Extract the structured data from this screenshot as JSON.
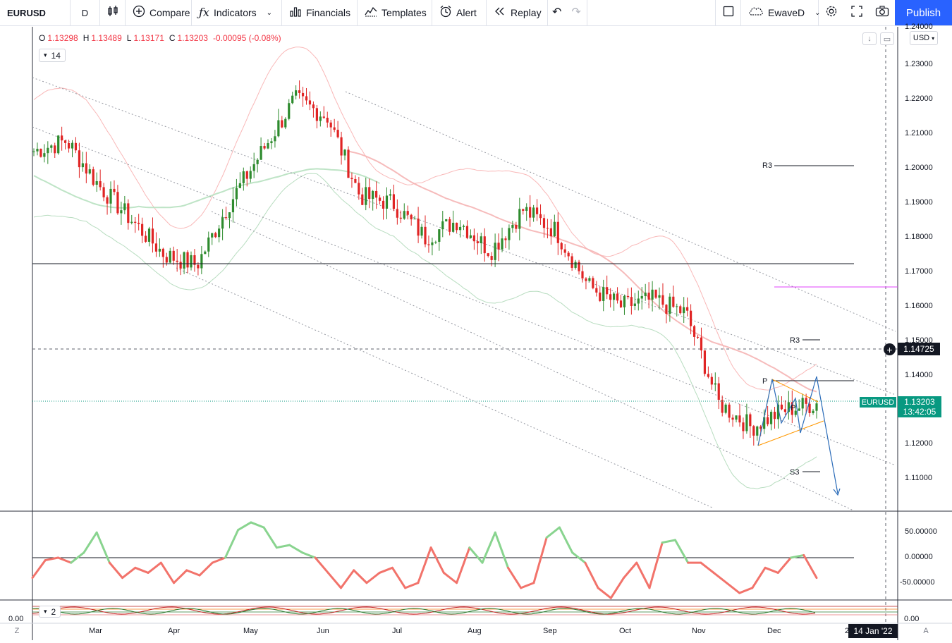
{
  "toolbar": {
    "symbol": "EURUSD",
    "interval": "D",
    "compare": "Compare",
    "indicators": "Indicators",
    "financials": "Financials",
    "templates": "Templates",
    "alert": "Alert",
    "replay": "Replay",
    "layout_name": "EwaveD",
    "publish": "Publish"
  },
  "legend": {
    "open_label": "O",
    "open": "1.13298",
    "high_label": "H",
    "high": "1.13489",
    "low_label": "L",
    "low": "1.13171",
    "close_label": "C",
    "close": "1.13203",
    "change": "-0.00095 (-0.08%)"
  },
  "indicator_chip": {
    "value": "14"
  },
  "indicator_chip2": {
    "value": "2"
  },
  "currency": "USD",
  "price_axis": [
    "1.24000",
    "1.23000",
    "1.22000",
    "1.21000",
    "1.20000",
    "1.19000",
    "1.18000",
    "1.17000",
    "1.16000",
    "1.15000",
    "1.14000",
    "1.12000",
    "1.11000"
  ],
  "osc_axis": [
    "50.00000",
    "0.00000",
    "-50.00000"
  ],
  "bottom_axis": [
    "0.00"
  ],
  "left_bottom": "0.00",
  "months": [
    "Mar",
    "Apr",
    "May",
    "Jun",
    "Jul",
    "Aug",
    "Sep",
    "Oct",
    "Nov",
    "Dec"
  ],
  "date_axis_tail": "2",
  "crosshair_date": "14 Jan '22",
  "crosshair_price": "1.14725",
  "current": {
    "symbol": "EURUSD",
    "price": "1.13203",
    "countdown": "13:42:05"
  },
  "pivots": {
    "r3_upper": "R3",
    "r3_lower": "R3",
    "p": "P",
    "s3": "S3",
    "p_inner": "P"
  },
  "corners": {
    "left": "Z",
    "right": "A"
  },
  "colors": {
    "up": "#089981",
    "down": "#f23645",
    "candle_up": "#2e8b2e",
    "candle_down": "#e02424",
    "accent": "#2962ff"
  },
  "chart_data": {
    "type": "candlestick",
    "symbol": "EURUSD",
    "interval": "D",
    "price_range": [
      1.1,
      1.24
    ],
    "x": [
      "Mar",
      "Apr",
      "May",
      "Jun",
      "Jul",
      "Aug",
      "Sep",
      "Oct",
      "Nov",
      "Dec"
    ],
    "closes_approx": [
      1.205,
      1.208,
      1.195,
      1.185,
      1.175,
      1.172,
      1.19,
      1.205,
      1.22,
      1.215,
      1.192,
      1.19,
      1.18,
      1.185,
      1.176,
      1.188,
      1.182,
      1.166,
      1.16,
      1.162,
      1.158,
      1.132,
      1.125,
      1.13,
      1.132
    ],
    "horizontal_levels": [
      1.172,
      1.14725,
      1.165,
      1.138,
      1.13203
    ],
    "oscillator": {
      "range": [
        -70,
        75
      ],
      "values": [
        -40,
        -5,
        0,
        -10,
        10,
        50,
        -10,
        -40,
        -20,
        -30,
        -10,
        -50,
        -25,
        -35,
        -10,
        0,
        55,
        70,
        60,
        20,
        25,
        10,
        0,
        -30,
        -60,
        -25,
        -50,
        -30,
        -20,
        -60,
        -50,
        20,
        -30,
        -50,
        20,
        -10,
        50,
        -20,
        -60,
        -50,
        40,
        60,
        10,
        -10,
        -60,
        -80,
        -40,
        -10,
        -60,
        30,
        35,
        -10,
        -10,
        -30,
        -50,
        -70,
        -60,
        -20,
        -30,
        0,
        5,
        -40
      ]
    },
    "osc_ticks": [
      50,
      0,
      -50
    ]
  }
}
